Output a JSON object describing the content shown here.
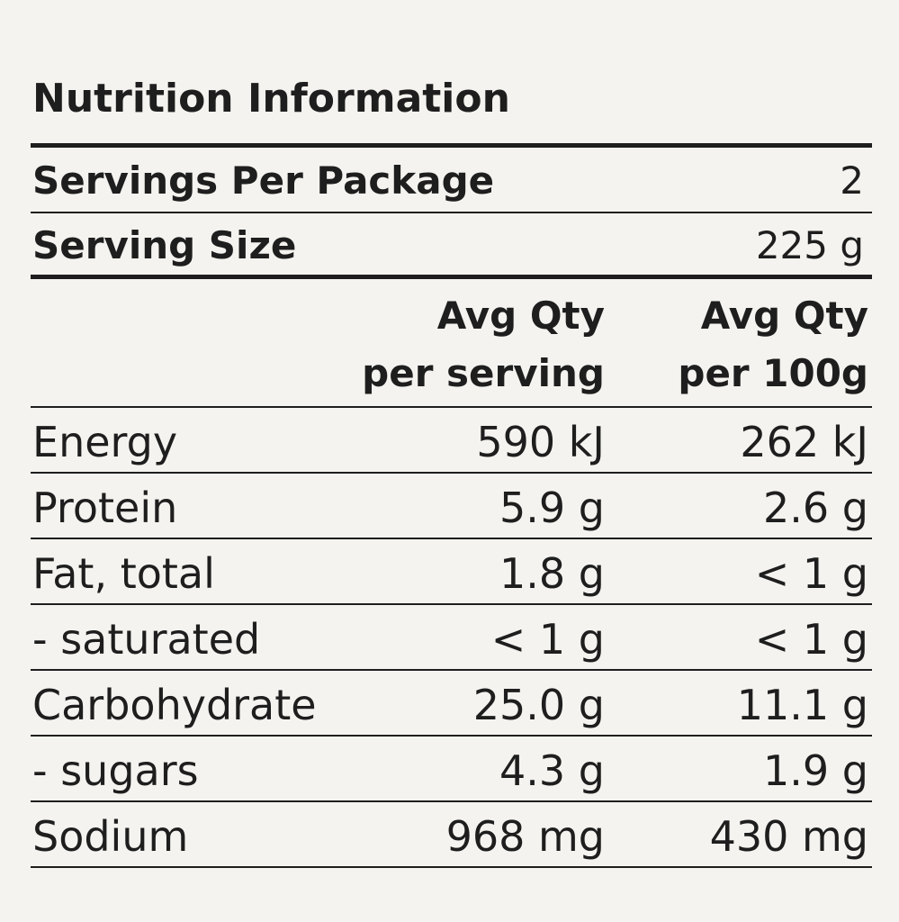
{
  "title": "Nutrition Information",
  "summary": [
    [
      "Servings Per Package",
      "2"
    ],
    [
      "Serving Size",
      "225 g"
    ]
  ],
  "table": {
    "columns": [
      [
        "Avg Qty",
        "per serving"
      ],
      [
        "Avg Qty",
        "per 100g"
      ]
    ],
    "rows": [
      [
        "Energy",
        "590 kJ",
        "262 kJ"
      ],
      [
        "Protein",
        "5.9 g",
        "2.6 g"
      ],
      [
        "Fat, total",
        "1.8 g",
        "< 1 g"
      ],
      [
        "- saturated",
        "< 1 g",
        "< 1 g"
      ],
      [
        "Carbohydrate",
        "25.0 g",
        "11.1 g"
      ],
      [
        "- sugars",
        "4.3 g",
        "1.9 g"
      ],
      [
        "Sodium",
        "968 mg",
        "430 mg"
      ]
    ]
  }
}
